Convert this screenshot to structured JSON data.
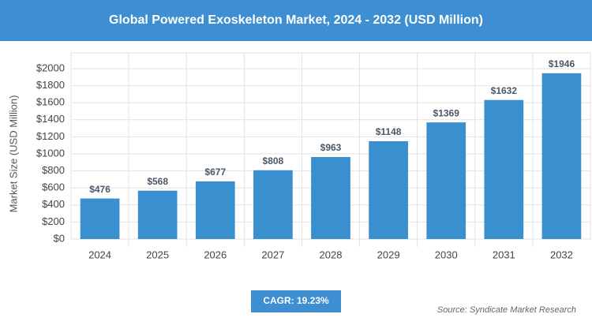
{
  "chart_data": {
    "type": "bar",
    "title": "Global Powered Exoskeleton Market, 2024 - 2032 (USD Million)",
    "y_label": "Market Size (USD Million)",
    "categories": [
      "2024",
      "2025",
      "2026",
      "2027",
      "2028",
      "2029",
      "2030",
      "2031",
      "2032"
    ],
    "values": [
      476,
      568,
      677,
      808,
      963,
      1148,
      1369,
      1632,
      1946
    ],
    "value_labels": [
      "$476",
      "$568",
      "$677",
      "$808",
      "$963",
      "$1148",
      "$1369",
      "$1632",
      "$1946"
    ],
    "color": "#3a8fcf",
    "ylim": [
      0,
      2000
    ],
    "yticks": [
      {
        "value": 0,
        "label": "$0"
      },
      {
        "value": 200,
        "label": "$200"
      },
      {
        "value": 400,
        "label": "$400"
      },
      {
        "value": 600,
        "label": "$600"
      },
      {
        "value": 800,
        "label": "$800"
      },
      {
        "value": 1000,
        "label": "$1000"
      },
      {
        "value": 1200,
        "label": "$1200"
      },
      {
        "value": 1400,
        "label": "$1400"
      },
      {
        "value": 1600,
        "label": "$1600"
      },
      {
        "value": 1800,
        "label": "$1800"
      },
      {
        "value": 2000,
        "label": "$2000"
      }
    ],
    "grid": true,
    "cagr_label": "CAGR: 19.23%",
    "source": "Source: Syndicate Market Research"
  }
}
